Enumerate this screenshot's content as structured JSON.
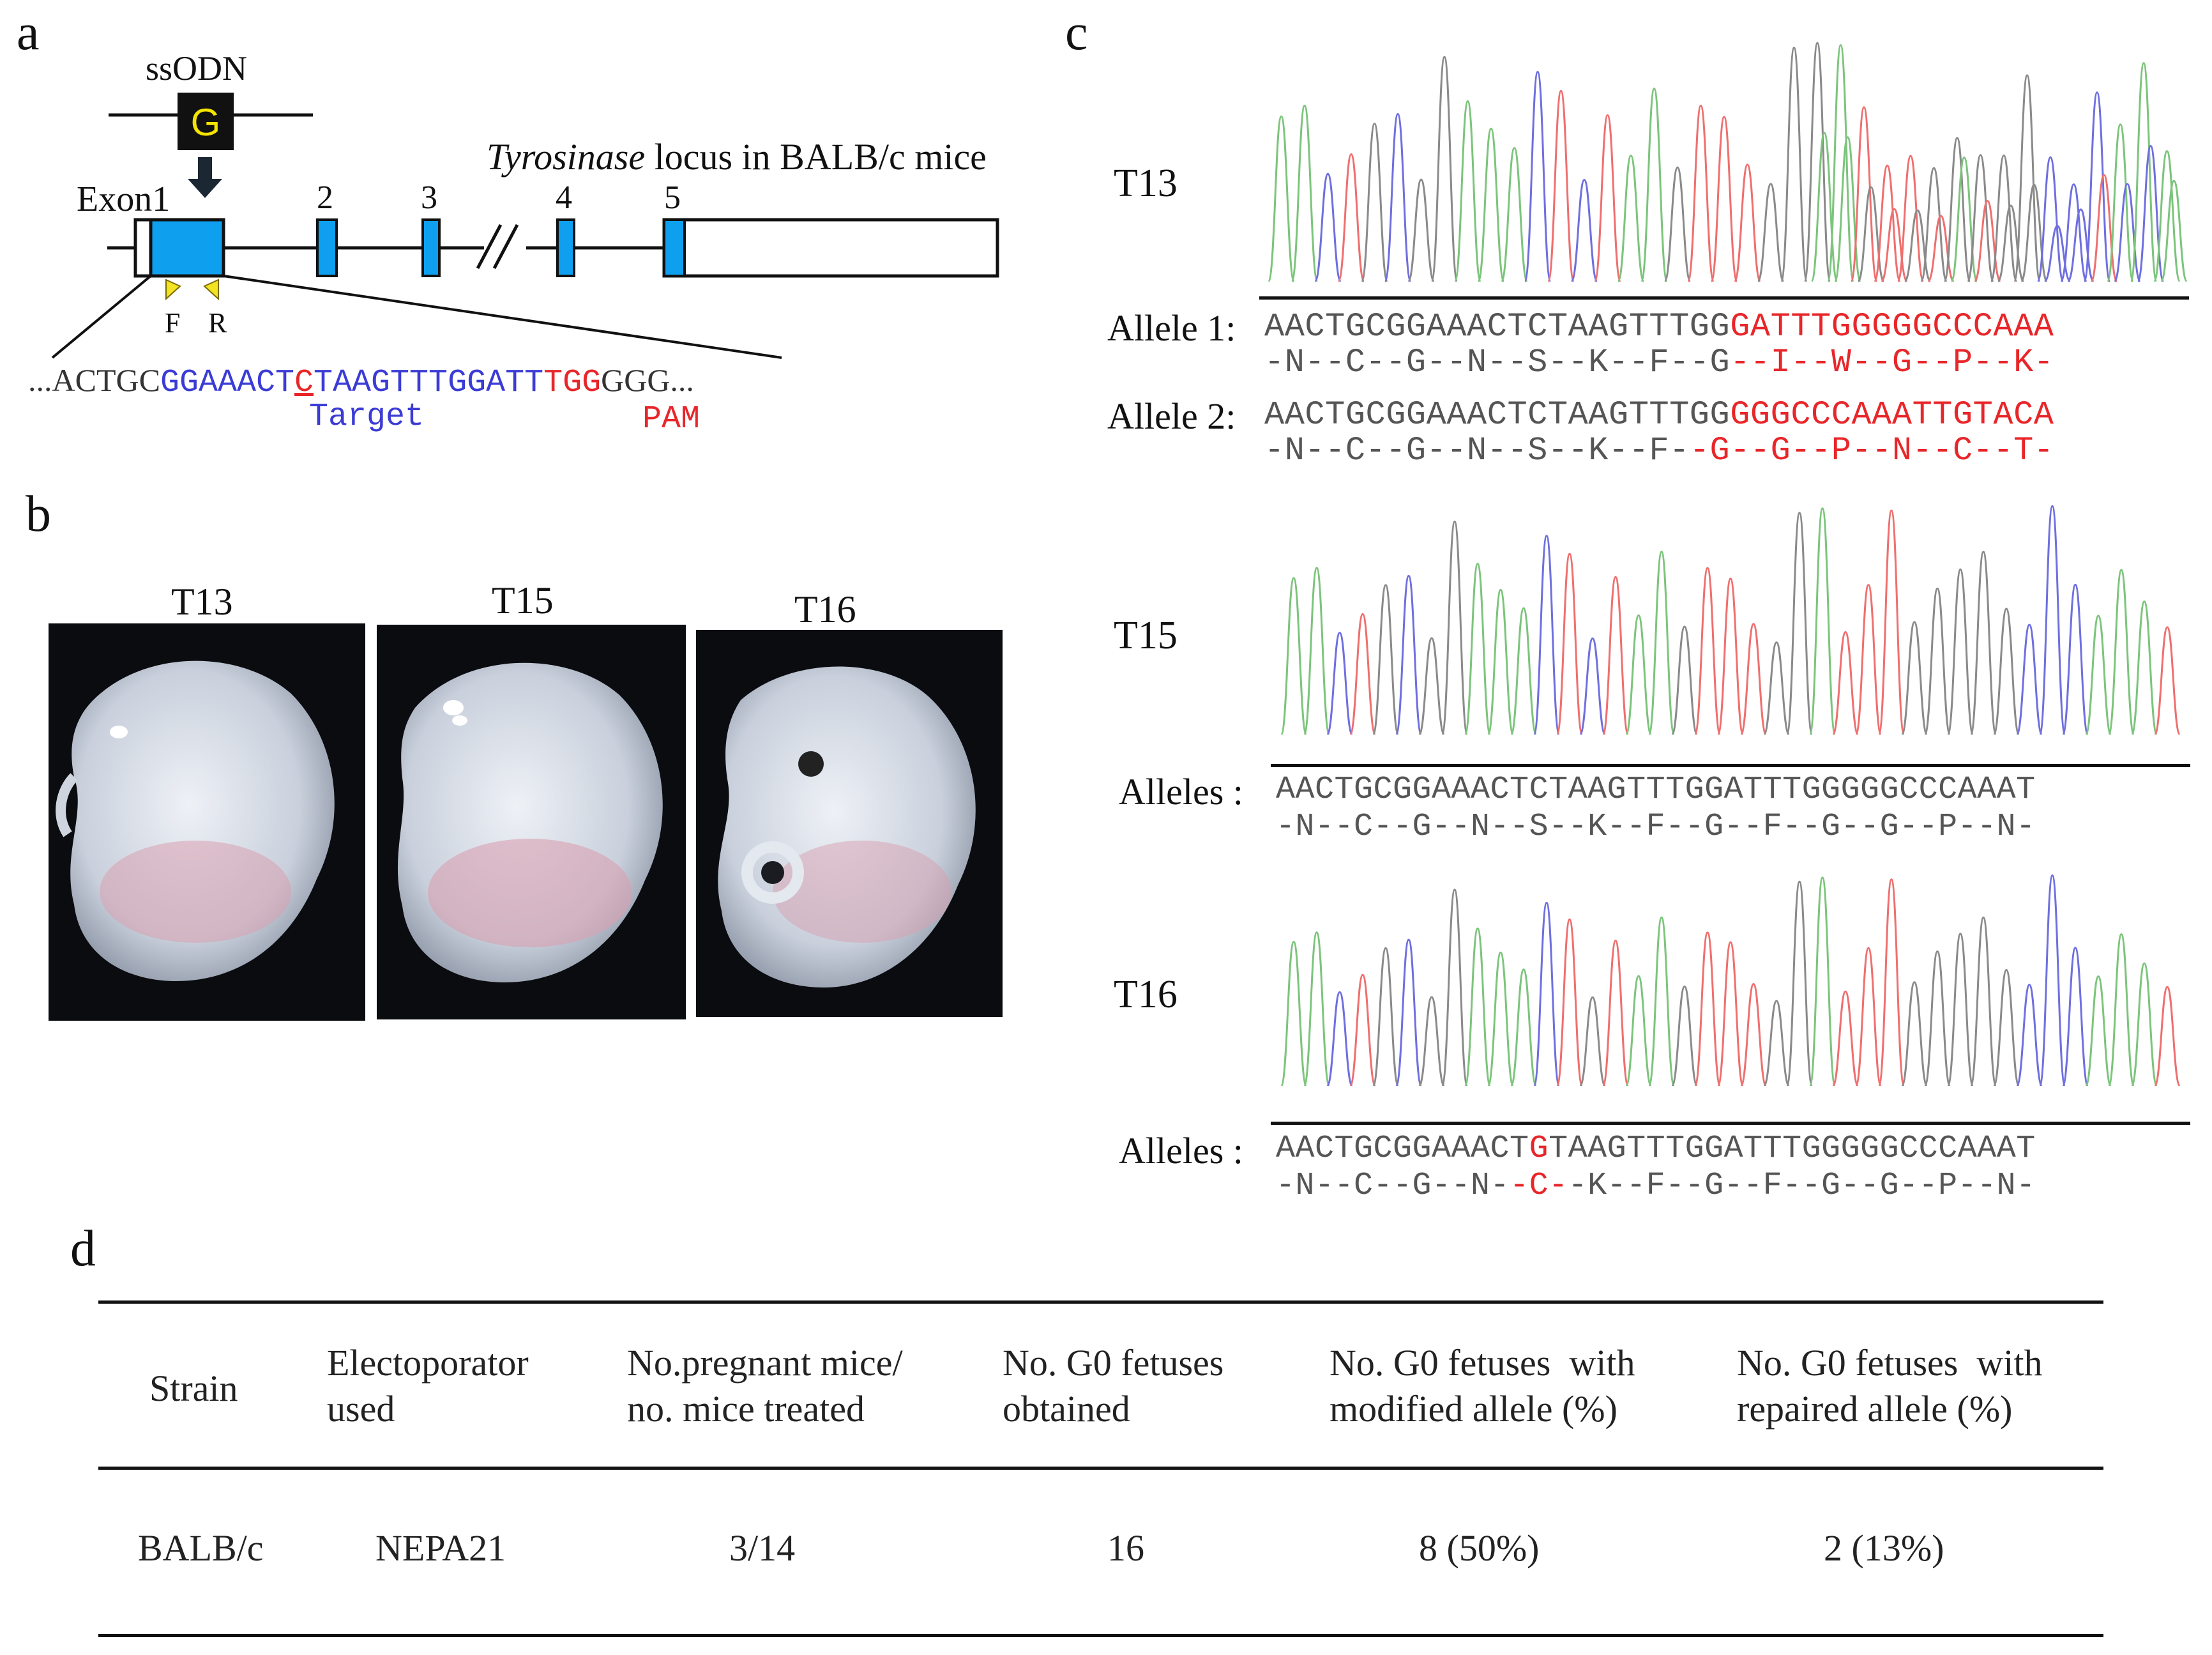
{
  "panels": {
    "a": "a",
    "b": "b",
    "c": "c",
    "d": "d"
  },
  "panel_a": {
    "ssodn_label": "ssODN",
    "ssodn_base": "G",
    "locus_label_italic": "Tyrosinase",
    "locus_label_rest": " locus in BALB/c mice",
    "exon1_label": "Exon1",
    "exon_numbers": [
      "2",
      "3",
      "4",
      "5"
    ],
    "primer_f": "F",
    "primer_r": "R",
    "sequence": {
      "prefix": "...ACTGC",
      "target_a": "GGAAACT",
      "mutated_base": "C",
      "target_b": "TAAGTTTGGATT",
      "pam": "TGG",
      "suffix": "GGG..."
    },
    "target_label": "Target",
    "pam_label": "PAM"
  },
  "panel_b": {
    "fetuses": [
      "T13",
      "T15",
      "T16"
    ]
  },
  "panel_c": {
    "samples": [
      {
        "id": "T13",
        "alleles": [
          {
            "label": "Allele  1:",
            "seq_normal": "AACTGCGGAAACTCTAAGTTTGG",
            "seq_red": "GATTTGGGGGCCCAAA",
            "aa_normal": "-N--C--G--N--S--K--F--G",
            "aa_red": "--I--W--G--P--K-"
          },
          {
            "label": "Allele  2:",
            "seq_normal": "AACTGCGGAAACTCTAAGTTTGG",
            "seq_red": "GGGCCCAAATTGTACA",
            "aa_normal": "-N--C--G--N--S--K--F-",
            "aa_red": "-G--G--P--N--C--T-"
          }
        ]
      },
      {
        "id": "T15",
        "alleles": [
          {
            "label": "Alleles :",
            "seq_a": "AACTGCGGAAACTCTAAGTTTGGATTTGGGGGCCCAAAT",
            "aa_a": "-N--C--G--N--S--K--F--G--F--G--G--P--N-"
          }
        ]
      },
      {
        "id": "T16",
        "alleles": [
          {
            "label": "Alleles :",
            "seq_a": "AACTGCGGAAACT",
            "seq_red": "G",
            "seq_b": "TAAGTTTGGATTTGGGGGCCCAAAT",
            "aa_a": "-N--C--G--N-",
            "aa_red": "-C-",
            "aa_b": "-K--F--G--F--G--G--P--N-"
          }
        ]
      }
    ],
    "trace_colors": {
      "A": "#7cc47c",
      "C": "#6f6fe0",
      "G": "#8a8a8a",
      "T": "#ef6f6f"
    }
  },
  "panel_d": {
    "headers": [
      [
        "Strain"
      ],
      [
        "Electoporator",
        "used"
      ],
      [
        "No.pregnant mice/",
        "no. mice treated"
      ],
      [
        "No. G0 fetuses",
        "obtained"
      ],
      [
        "No. G0 fetuses  with",
        "modified allele (%)"
      ],
      [
        "No. G0 fetuses  with",
        "repaired allele (%)"
      ]
    ],
    "row": [
      "BALB/c",
      "NEPA21",
      "3/14",
      "16",
      "8 (50%)",
      "2 (13%)"
    ]
  }
}
